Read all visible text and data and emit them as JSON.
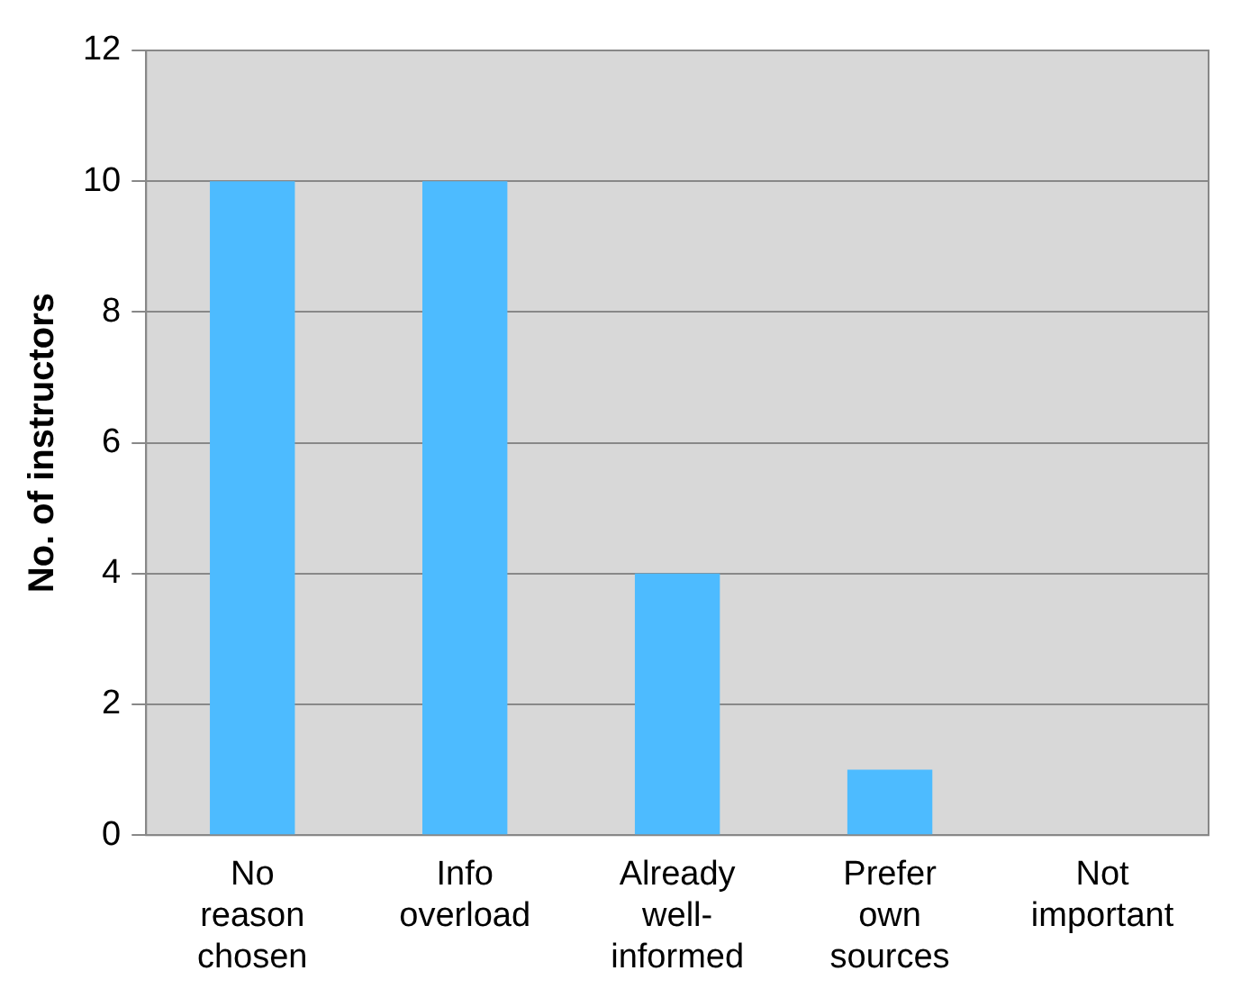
{
  "chart_data": {
    "type": "bar",
    "ylabel": "No. of instructors",
    "categories": [
      "No reason chosen",
      "Info overload",
      "Already well-informed",
      "Prefer own sources",
      "Not important"
    ],
    "values": [
      10,
      10,
      4,
      1,
      0
    ],
    "color": "#4dbbff",
    "ylim": [
      0,
      12
    ],
    "yticks": [
      0,
      2,
      4,
      6,
      8,
      10,
      12
    ],
    "grid": "y"
  }
}
